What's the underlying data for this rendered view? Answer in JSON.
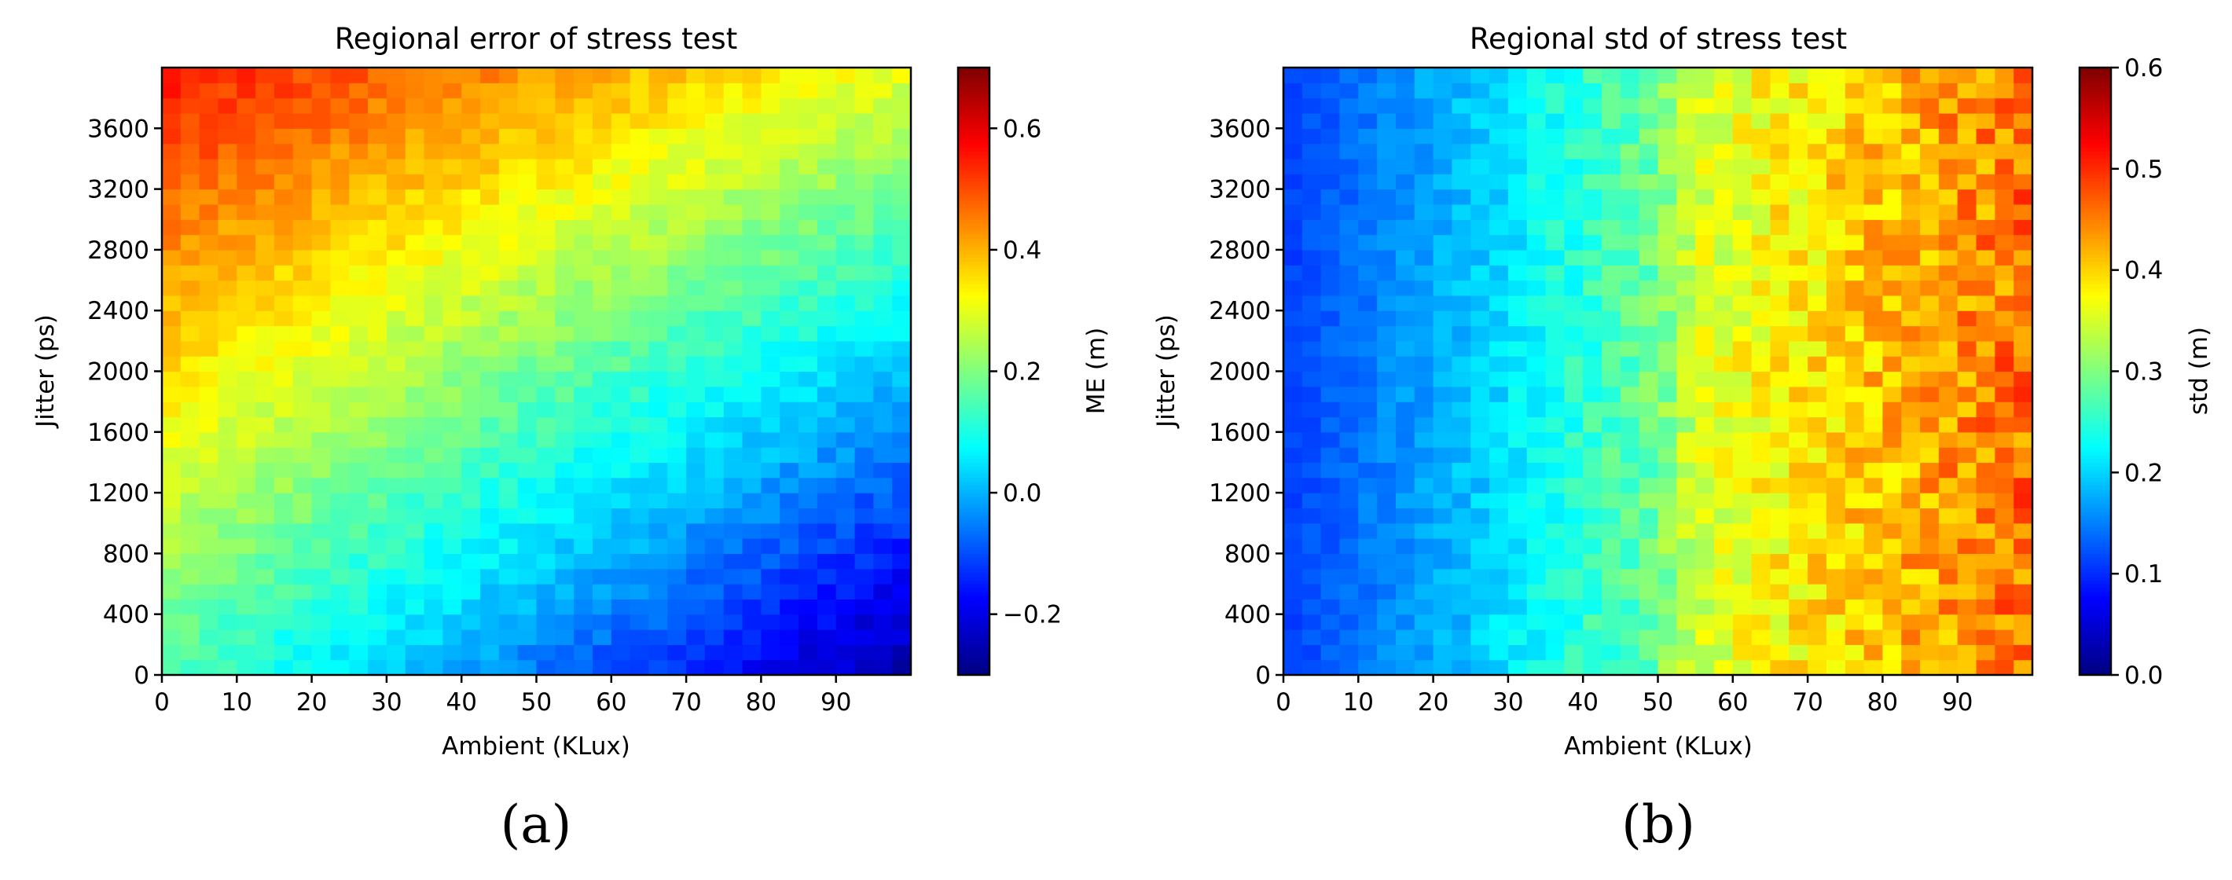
{
  "chart_data": [
    {
      "type": "heatmap",
      "panel_label": "(a)",
      "title": "Regional error of stress test",
      "xlabel": "Ambient (KLux)",
      "ylabel": "Jitter (ps)",
      "xlim": [
        0,
        100
      ],
      "ylim": [
        0,
        4000
      ],
      "x_ticks": [
        0,
        10,
        20,
        30,
        40,
        50,
        60,
        70,
        80,
        90
      ],
      "y_ticks": [
        0,
        400,
        800,
        1200,
        1600,
        2000,
        2400,
        2800,
        3200,
        3600
      ],
      "colormap": "jet",
      "colorbar": {
        "label": "ME (m)",
        "range": [
          -0.3,
          0.7
        ],
        "ticks": [
          -0.2,
          0.0,
          0.2,
          0.4,
          0.6
        ],
        "tick_labels": [
          "−0.2",
          "0.0",
          "0.2",
          "0.4",
          "0.6"
        ]
      },
      "grid": false,
      "bins": {
        "x_count": 40,
        "y_count": 40
      },
      "corner_values": {
        "ambient0_jitter0": 0.15,
        "ambient100_jitter0": -0.27,
        "ambient0_jitter4000": 0.56,
        "ambient100_jitter4000": 0.3
      },
      "noise": 0.03
    },
    {
      "type": "heatmap",
      "panel_label": "(b)",
      "title": "Regional std of stress test",
      "xlabel": "Ambient (KLux)",
      "ylabel": "Jitter (ps)",
      "xlim": [
        0,
        100
      ],
      "ylim": [
        0,
        4000
      ],
      "x_ticks": [
        0,
        10,
        20,
        30,
        40,
        50,
        60,
        70,
        80,
        90
      ],
      "y_ticks": [
        0,
        400,
        800,
        1200,
        1600,
        2000,
        2400,
        2800,
        3200,
        3600
      ],
      "colormap": "jet",
      "colorbar": {
        "label": "std (m)",
        "range": [
          0.0,
          0.6
        ],
        "ticks": [
          0.0,
          0.1,
          0.2,
          0.3,
          0.4,
          0.5,
          0.6
        ],
        "tick_labels": [
          "0.0",
          "0.1",
          "0.2",
          "0.3",
          "0.4",
          "0.5",
          "0.6"
        ]
      },
      "grid": false,
      "bins": {
        "x_count": 40,
        "y_count": 40
      },
      "profile_by_ambient": {
        "x": [
          0,
          25,
          50,
          55,
          75,
          100
        ],
        "y": [
          0.11,
          0.19,
          0.29,
          0.35,
          0.4,
          0.46
        ]
      },
      "noise": 0.025
    }
  ]
}
